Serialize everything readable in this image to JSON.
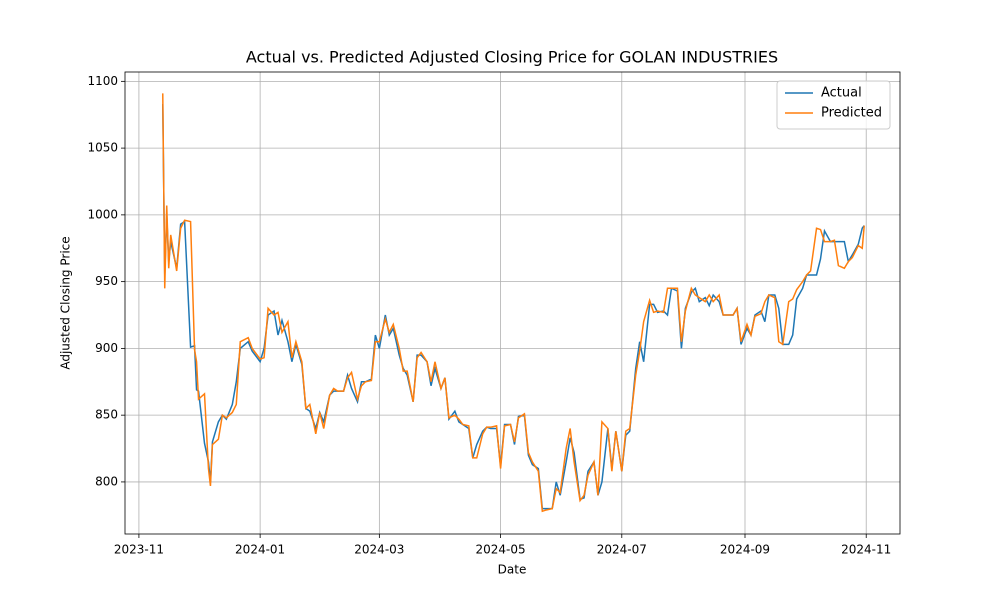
{
  "chart_data": {
    "type": "line",
    "title": "Actual vs. Predicted Adjusted Closing Price for GOLAN INDUSTRIES",
    "x_label": "Date",
    "y_label": "Adjusted Closing Price",
    "x": [
      "2023-11-13",
      "2023-11-14",
      "2023-11-15",
      "2023-11-16",
      "2023-11-17",
      "2023-11-20",
      "2023-11-22",
      "2023-11-24",
      "2023-11-27",
      "2023-11-29",
      "2023-11-30",
      "2023-12-01",
      "2023-12-04",
      "2023-12-06",
      "2023-12-07",
      "2023-12-08",
      "2023-12-11",
      "2023-12-13",
      "2023-12-15",
      "2023-12-18",
      "2023-12-20",
      "2023-12-22",
      "2023-12-26",
      "2023-12-28",
      "2024-01-01",
      "2024-01-03",
      "2024-01-05",
      "2024-01-08",
      "2024-01-10",
      "2024-01-12",
      "2024-01-15",
      "2024-01-17",
      "2024-01-19",
      "2024-01-22",
      "2024-01-24",
      "2024-01-26",
      "2024-01-29",
      "2024-01-31",
      "2024-02-02",
      "2024-02-05",
      "2024-02-07",
      "2024-02-09",
      "2024-02-12",
      "2024-02-14",
      "2024-02-16",
      "2024-02-19",
      "2024-02-21",
      "2024-02-23",
      "2024-02-26",
      "2024-02-28",
      "2024-03-01",
      "2024-03-04",
      "2024-03-06",
      "2024-03-08",
      "2024-03-11",
      "2024-03-13",
      "2024-03-15",
      "2024-03-18",
      "2024-03-20",
      "2024-03-22",
      "2024-03-25",
      "2024-03-27",
      "2024-03-29",
      "2024-04-01",
      "2024-04-03",
      "2024-04-05",
      "2024-04-08",
      "2024-04-10",
      "2024-04-12",
      "2024-04-15",
      "2024-04-17",
      "2024-04-19",
      "2024-04-22",
      "2024-04-24",
      "2024-04-26",
      "2024-04-29",
      "2024-05-01",
      "2024-05-03",
      "2024-05-06",
      "2024-05-08",
      "2024-05-10",
      "2024-05-13",
      "2024-05-15",
      "2024-05-17",
      "2024-05-20",
      "2024-05-22",
      "2024-05-24",
      "2024-05-27",
      "2024-05-29",
      "2024-05-31",
      "2024-06-03",
      "2024-06-05",
      "2024-06-07",
      "2024-06-10",
      "2024-06-12",
      "2024-06-14",
      "2024-06-17",
      "2024-06-19",
      "2024-06-21",
      "2024-06-24",
      "2024-06-26",
      "2024-06-28",
      "2024-07-01",
      "2024-07-03",
      "2024-07-05",
      "2024-07-08",
      "2024-07-10",
      "2024-07-12",
      "2024-07-15",
      "2024-07-17",
      "2024-07-19",
      "2024-07-22",
      "2024-07-24",
      "2024-07-26",
      "2024-07-29",
      "2024-07-31",
      "2024-08-02",
      "2024-08-05",
      "2024-08-07",
      "2024-08-09",
      "2024-08-12",
      "2024-08-14",
      "2024-08-16",
      "2024-08-19",
      "2024-08-21",
      "2024-08-23",
      "2024-08-26",
      "2024-08-28",
      "2024-08-30",
      "2024-09-02",
      "2024-09-04",
      "2024-09-06",
      "2024-09-09",
      "2024-09-11",
      "2024-09-13",
      "2024-09-16",
      "2024-09-18",
      "2024-09-20",
      "2024-09-23",
      "2024-09-25",
      "2024-09-27",
      "2024-09-30",
      "2024-10-02",
      "2024-10-04",
      "2024-10-07",
      "2024-10-09",
      "2024-10-11",
      "2024-10-14",
      "2024-10-16",
      "2024-10-18",
      "2024-10-21",
      "2024-10-23",
      "2024-10-25",
      "2024-10-28",
      "2024-10-30",
      "2024-10-31"
    ],
    "series": [
      {
        "name": "Actual",
        "color": "#1f77b4",
        "values": [
          1083,
          955,
          1000,
          965,
          980,
          960,
          993,
          995,
          901,
          902,
          869,
          868,
          829,
          815,
          800,
          830,
          845,
          850,
          847,
          858,
          875,
          900,
          905,
          898,
          890,
          900,
          925,
          928,
          910,
          921,
          905,
          890,
          903,
          888,
          855,
          853,
          840,
          852,
          845,
          865,
          868,
          868,
          868,
          880,
          870,
          860,
          875,
          875,
          877,
          910,
          900,
          925,
          910,
          915,
          895,
          885,
          880,
          860,
          895,
          895,
          890,
          872,
          885,
          870,
          878,
          847,
          853,
          845,
          843,
          840,
          818,
          828,
          838,
          841,
          840,
          840,
          812,
          843,
          843,
          828,
          849,
          850,
          820,
          813,
          810,
          780,
          780,
          780,
          800,
          790,
          815,
          833,
          822,
          787,
          788,
          808,
          815,
          790,
          800,
          840,
          810,
          838,
          808,
          835,
          838,
          885,
          905,
          890,
          933,
          933,
          927,
          928,
          925,
          945,
          943,
          900,
          930,
          942,
          945,
          935,
          938,
          932,
          940,
          935,
          925,
          925,
          925,
          930,
          903,
          915,
          910,
          925,
          928,
          920,
          940,
          940,
          930,
          903,
          903,
          910,
          937,
          945,
          955,
          955,
          955,
          967,
          988,
          980,
          980,
          980,
          980,
          965,
          970,
          978,
          990,
          992
        ]
      },
      {
        "name": "Predicted",
        "color": "#ff7f0e",
        "values": [
          1091,
          945,
          1007,
          960,
          985,
          958,
          990,
          996,
          995,
          899,
          890,
          862,
          866,
          810,
          797,
          828,
          832,
          850,
          848,
          852,
          858,
          905,
          908,
          900,
          892,
          893,
          930,
          925,
          927,
          912,
          920,
          893,
          905,
          890,
          855,
          858,
          836,
          852,
          840,
          865,
          870,
          868,
          868,
          878,
          882,
          862,
          872,
          875,
          876,
          905,
          905,
          922,
          912,
          918,
          900,
          883,
          883,
          860,
          893,
          897,
          890,
          875,
          890,
          870,
          878,
          848,
          850,
          847,
          843,
          842,
          818,
          818,
          836,
          841,
          841,
          842,
          810,
          842,
          843,
          830,
          848,
          851,
          822,
          815,
          808,
          778,
          779,
          780,
          795,
          792,
          825,
          840,
          815,
          786,
          790,
          805,
          815,
          790,
          845,
          840,
          808,
          838,
          808,
          838,
          840,
          880,
          898,
          920,
          936,
          927,
          928,
          927,
          945,
          945,
          945,
          905,
          928,
          945,
          940,
          938,
          935,
          940,
          935,
          940,
          925,
          925,
          925,
          930,
          905,
          918,
          910,
          924,
          926,
          935,
          940,
          938,
          905,
          903,
          935,
          937,
          944,
          950,
          955,
          958,
          990,
          989,
          980,
          980,
          981,
          962,
          960,
          965,
          968,
          977,
          975,
          992
        ]
      }
    ],
    "xlim": [
      "2023-10-25",
      "2024-11-18"
    ],
    "xticks": [
      "2023-11",
      "2024-01",
      "2024-03",
      "2024-05",
      "2024-07",
      "2024-09",
      "2024-11"
    ],
    "ylim": [
      761,
      1107
    ],
    "yticks": [
      800,
      850,
      900,
      950,
      1000,
      1050,
      1100
    ],
    "grid": true,
    "legend": "upper right"
  }
}
